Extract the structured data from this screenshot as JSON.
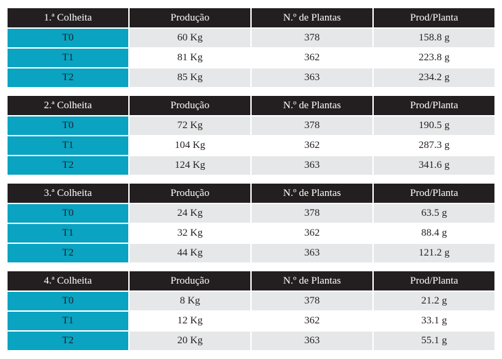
{
  "tables": [
    {
      "header": [
        "1.ª Colheita",
        "Produção",
        "N.º de Plantas",
        "Prod/Planta"
      ],
      "rows": [
        [
          "T0",
          "60 Kg",
          "378",
          "158.8 g"
        ],
        [
          "T1",
          "81 Kg",
          "362",
          "223.8 g"
        ],
        [
          "T2",
          "85 Kg",
          "363",
          "234.2 g"
        ]
      ]
    },
    {
      "header": [
        "2.ª Colheita",
        "Produção",
        "N.º de Plantas",
        "Prod/Planta"
      ],
      "rows": [
        [
          "T0",
          "72 Kg",
          "378",
          "190.5 g"
        ],
        [
          "T1",
          "104 Kg",
          "362",
          "287.3 g"
        ],
        [
          "T2",
          "124 Kg",
          "363",
          "341.6 g"
        ]
      ]
    },
    {
      "header": [
        "3.ª Colheita",
        "Produção",
        "N.º de Plantas",
        "Prod/Planta"
      ],
      "rows": [
        [
          "T0",
          "24 Kg",
          "378",
          "63.5 g"
        ],
        [
          "T1",
          "32 Kg",
          "362",
          "88.4 g"
        ],
        [
          "T2",
          "44 Kg",
          "363",
          "121.2 g"
        ]
      ]
    },
    {
      "header": [
        "4.ª Colheita",
        "Produção",
        "N.º de Plantas",
        "Prod/Planta"
      ],
      "rows": [
        [
          "T0",
          "8 Kg",
          "378",
          "21.2 g"
        ],
        [
          "T1",
          "12 Kg",
          "362",
          "33.1 g"
        ],
        [
          "T2",
          "20 Kg",
          "363",
          "55.1 g"
        ]
      ]
    }
  ]
}
